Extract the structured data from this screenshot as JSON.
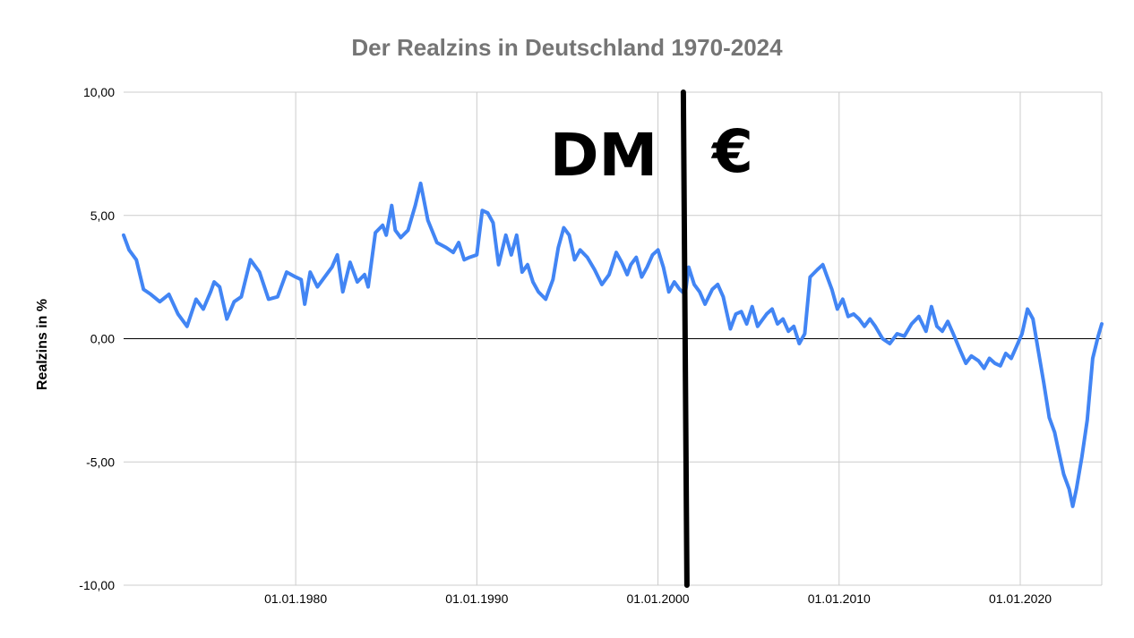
{
  "chart_data": {
    "type": "line",
    "title": "Der Realzins in Deutschland 1970-2024",
    "xlabel": "",
    "ylabel": "Realzins in %",
    "xlim": [
      1970.5,
      2024.5
    ],
    "ylim": [
      -10,
      10
    ],
    "y_ticks": [
      10,
      5,
      0,
      -5,
      -10
    ],
    "y_tick_labels": [
      "10,00",
      "5,00",
      "0,00",
      "-5,00",
      "-10,00"
    ],
    "x_ticks": [
      1980,
      1990,
      2000,
      2010,
      2020
    ],
    "x_tick_labels": [
      "01.01.1980",
      "01.01.1990",
      "01.01.2000",
      "01.01.2010",
      "01.01.2020"
    ],
    "grid": true,
    "series": [
      {
        "color": "#4285f4",
        "x": [
          1970.5,
          1970.8,
          1971.2,
          1971.6,
          1972.0,
          1972.5,
          1973.0,
          1973.5,
          1974.0,
          1974.5,
          1974.9,
          1975.3,
          1975.5,
          1975.8,
          1976.2,
          1976.6,
          1977.0,
          1977.5,
          1978.0,
          1978.5,
          1979.0,
          1979.5,
          1980.0,
          1980.3,
          1980.5,
          1980.8,
          1981.2,
          1981.6,
          1982.0,
          1982.3,
          1982.6,
          1983.0,
          1983.4,
          1983.8,
          1984.0,
          1984.4,
          1984.8,
          1985.0,
          1985.3,
          1985.5,
          1985.8,
          1986.2,
          1986.6,
          1986.9,
          1987.3,
          1987.8,
          1988.3,
          1988.7,
          1989.0,
          1989.3,
          1989.6,
          1990.0,
          1990.3,
          1990.6,
          1990.9,
          1991.2,
          1991.6,
          1991.9,
          1992.2,
          1992.5,
          1992.8,
          1993.1,
          1993.4,
          1993.8,
          1994.2,
          1994.5,
          1994.8,
          1995.1,
          1995.4,
          1995.7,
          1996.1,
          1996.5,
          1996.9,
          1997.3,
          1997.7,
          1998.0,
          1998.3,
          1998.5,
          1998.8,
          1999.1,
          1999.4,
          1999.7,
          2000.0,
          2000.3,
          2000.6,
          2000.9,
          2001.2,
          2001.5,
          2001.7,
          2002.0,
          2002.3,
          2002.6,
          2003.0,
          2003.3,
          2003.6,
          2004.0,
          2004.3,
          2004.6,
          2004.9,
          2005.2,
          2005.5,
          2005.8,
          2006.0,
          2006.3,
          2006.6,
          2006.9,
          2007.2,
          2007.5,
          2007.8,
          2008.1,
          2008.4,
          2008.8,
          2009.1,
          2009.3,
          2009.6,
          2009.9,
          2010.2,
          2010.5,
          2010.8,
          2011.1,
          2011.4,
          2011.7,
          2012.0,
          2012.4,
          2012.8,
          2013.2,
          2013.6,
          2014.0,
          2014.4,
          2014.8,
          2015.1,
          2015.4,
          2015.7,
          2016.0,
          2016.3,
          2016.7,
          2017.0,
          2017.3,
          2017.7,
          2018.0,
          2018.3,
          2018.6,
          2018.9,
          2019.2,
          2019.5,
          2019.8,
          2020.1,
          2020.4,
          2020.7,
          2021.0,
          2021.3,
          2021.6,
          2021.9,
          2022.1,
          2022.4,
          2022.7,
          2022.9,
          2023.1,
          2023.4,
          2023.7,
          2024.0,
          2024.3,
          2024.5
        ],
        "y": [
          4.2,
          3.6,
          3.2,
          2.0,
          1.8,
          1.5,
          1.8,
          1.0,
          0.5,
          1.6,
          1.2,
          1.9,
          2.3,
          2.1,
          0.8,
          1.5,
          1.7,
          3.2,
          2.7,
          1.6,
          1.7,
          2.7,
          2.5,
          2.4,
          1.4,
          2.7,
          2.1,
          2.5,
          2.9,
          3.4,
          1.9,
          3.1,
          2.3,
          2.6,
          2.1,
          4.3,
          4.6,
          4.2,
          5.4,
          4.4,
          4.1,
          4.4,
          5.4,
          6.3,
          4.8,
          3.9,
          3.7,
          3.5,
          3.9,
          3.2,
          3.3,
          3.4,
          5.2,
          5.1,
          4.7,
          3.0,
          4.2,
          3.4,
          4.2,
          2.7,
          3.0,
          2.3,
          1.9,
          1.6,
          2.4,
          3.7,
          4.5,
          4.2,
          3.2,
          3.6,
          3.3,
          2.8,
          2.2,
          2.6,
          3.5,
          3.1,
          2.6,
          3.0,
          3.3,
          2.5,
          2.9,
          3.4,
          3.6,
          2.9,
          1.9,
          2.3,
          2.0,
          1.8,
          2.9,
          2.2,
          1.9,
          1.4,
          2.0,
          2.2,
          1.7,
          0.4,
          1.0,
          1.1,
          0.6,
          1.3,
          0.5,
          0.8,
          1.0,
          1.2,
          0.6,
          0.8,
          0.3,
          0.5,
          -0.2,
          0.2,
          2.5,
          2.8,
          3.0,
          2.6,
          2.0,
          1.2,
          1.6,
          0.9,
          1.0,
          0.8,
          0.5,
          0.8,
          0.5,
          0.0,
          -0.2,
          0.2,
          0.1,
          0.6,
          0.9,
          0.3,
          1.3,
          0.5,
          0.3,
          0.7,
          0.2,
          -0.5,
          -1.0,
          -0.7,
          -0.9,
          -1.2,
          -0.8,
          -1.0,
          -1.1,
          -0.6,
          -0.8,
          -0.3,
          0.2,
          1.2,
          0.8,
          -0.5,
          -1.8,
          -3.2,
          -3.8,
          -4.5,
          -5.5,
          -6.1,
          -6.8,
          -6.1,
          -4.8,
          -3.3,
          -0.8,
          0.1,
          0.6
        ]
      }
    ],
    "annotations": {
      "divider_x": 2001.5,
      "left_label": "DM",
      "right_label": "€"
    }
  }
}
